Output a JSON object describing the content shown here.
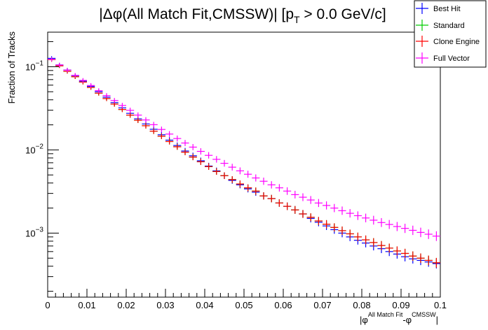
{
  "chart_data": {
    "type": "scatter",
    "title": {
      "prefix": "|Δφ(",
      "match": "All Match Fit,CMSSW",
      "middle": ")| [p",
      "subscript": "T",
      "suffix": " > 0.0 GeV/c]"
    },
    "xlabel": {
      "phi_a": "|φ",
      "sup_a": "All Match Fit",
      "dash": "-φ",
      "sup_b": "CMSSW",
      "close": "|"
    },
    "ylabel": "Fraction of Tracks",
    "xlim": [
      0,
      0.1
    ],
    "ylim": [
      0.00017,
      0.26
    ],
    "y_scale": "log",
    "x_ticks": [
      "0",
      "0.01",
      "0.02",
      "0.03",
      "0.04",
      "0.05",
      "0.06",
      "0.07",
      "0.08",
      "0.09",
      "0.1"
    ],
    "y_ticks": [
      {
        "base": "10",
        "exp": "−1",
        "value": 0.1
      },
      {
        "base": "10",
        "exp": "−2",
        "value": 0.01
      },
      {
        "base": "10",
        "exp": "−3",
        "value": 0.001
      }
    ],
    "legend_position": "top-right",
    "bin_width": 0.002,
    "x": [
      0.001,
      0.003,
      0.005,
      0.007,
      0.009,
      0.011,
      0.013,
      0.015,
      0.017,
      0.019,
      0.021,
      0.023,
      0.025,
      0.027,
      0.029,
      0.031,
      0.033,
      0.035,
      0.037,
      0.039,
      0.041,
      0.043,
      0.045,
      0.047,
      0.049,
      0.051,
      0.053,
      0.055,
      0.057,
      0.059,
      0.061,
      0.063,
      0.065,
      0.067,
      0.069,
      0.071,
      0.073,
      0.075,
      0.077,
      0.079,
      0.081,
      0.083,
      0.085,
      0.087,
      0.089,
      0.091,
      0.093,
      0.095,
      0.097,
      0.099
    ],
    "series": [
      {
        "name": "Best Hit",
        "color": "#0000ff",
        "values": [
          0.126,
          0.105,
          0.091,
          0.078,
          0.067,
          0.058,
          0.05,
          0.043,
          0.037,
          0.032,
          0.0275,
          0.0236,
          0.0205,
          0.0177,
          0.0152,
          0.0131,
          0.0113,
          0.0097,
          0.0085,
          0.0074,
          0.0064,
          0.0056,
          0.0049,
          0.0043,
          0.0038,
          0.0034,
          0.0031,
          0.0028,
          0.0026,
          0.0023,
          0.0021,
          0.0019,
          0.0017,
          0.0015,
          0.00135,
          0.00122,
          0.0011,
          0.001,
          0.0009,
          0.00082,
          0.00076,
          0.0007,
          0.00065,
          0.0006,
          0.00056,
          0.00052,
          0.00049,
          0.00047,
          0.00045,
          0.00043
        ]
      },
      {
        "name": "Standard",
        "color": "#00cc00",
        "values": [
          0.1215,
          0.1025,
          0.0879,
          0.0757,
          0.0653,
          0.0563,
          0.0481,
          0.0414,
          0.0355,
          0.0306,
          0.0262,
          0.0227,
          0.0195,
          0.0168,
          0.0146,
          0.0126,
          0.0109,
          0.0094,
          0.0082,
          0.0072,
          0.0063,
          0.0055,
          0.0049,
          0.0044,
          0.0039,
          0.0035,
          0.0032,
          0.0028,
          0.0026,
          0.0023,
          0.0021,
          0.0019,
          0.0017,
          0.00155,
          0.0014,
          0.00128,
          0.00117,
          0.00107,
          0.00098,
          0.0009,
          0.00083,
          0.00077,
          0.00071,
          0.00066,
          0.00061,
          0.00057,
          0.00053,
          0.0005,
          0.00047,
          0.00044
        ]
      },
      {
        "name": "Clone Engine",
        "color": "#ff0000",
        "values": [
          0.1215,
          0.1025,
          0.0879,
          0.0757,
          0.0653,
          0.0563,
          0.0481,
          0.0414,
          0.0355,
          0.0306,
          0.0262,
          0.0227,
          0.0195,
          0.0168,
          0.0146,
          0.0126,
          0.0109,
          0.0094,
          0.0082,
          0.0072,
          0.0063,
          0.0055,
          0.0049,
          0.0044,
          0.0039,
          0.0035,
          0.0032,
          0.0028,
          0.0026,
          0.0023,
          0.0021,
          0.0019,
          0.0017,
          0.00155,
          0.0014,
          0.00128,
          0.00117,
          0.00107,
          0.00098,
          0.0009,
          0.00083,
          0.00077,
          0.00071,
          0.00066,
          0.00061,
          0.00057,
          0.00053,
          0.0005,
          0.00047,
          0.00044
        ]
      },
      {
        "name": "Full Vector",
        "color": "#ff00ff",
        "values": [
          0.1226,
          0.1046,
          0.0909,
          0.0787,
          0.0684,
          0.0594,
          0.0515,
          0.0449,
          0.0392,
          0.0342,
          0.0299,
          0.0262,
          0.0229,
          0.0201,
          0.0176,
          0.0155,
          0.0137,
          0.0121,
          0.0108,
          0.0096,
          0.0086,
          0.0077,
          0.0069,
          0.0062,
          0.0056,
          0.0051,
          0.0046,
          0.0042,
          0.0038,
          0.0035,
          0.0032,
          0.0029,
          0.0027,
          0.0025,
          0.0023,
          0.00215,
          0.002,
          0.00186,
          0.00173,
          0.00162,
          0.00152,
          0.00143,
          0.00134,
          0.00127,
          0.0012,
          0.00114,
          0.00108,
          0.00102,
          0.00097,
          0.00092
        ]
      }
    ]
  }
}
